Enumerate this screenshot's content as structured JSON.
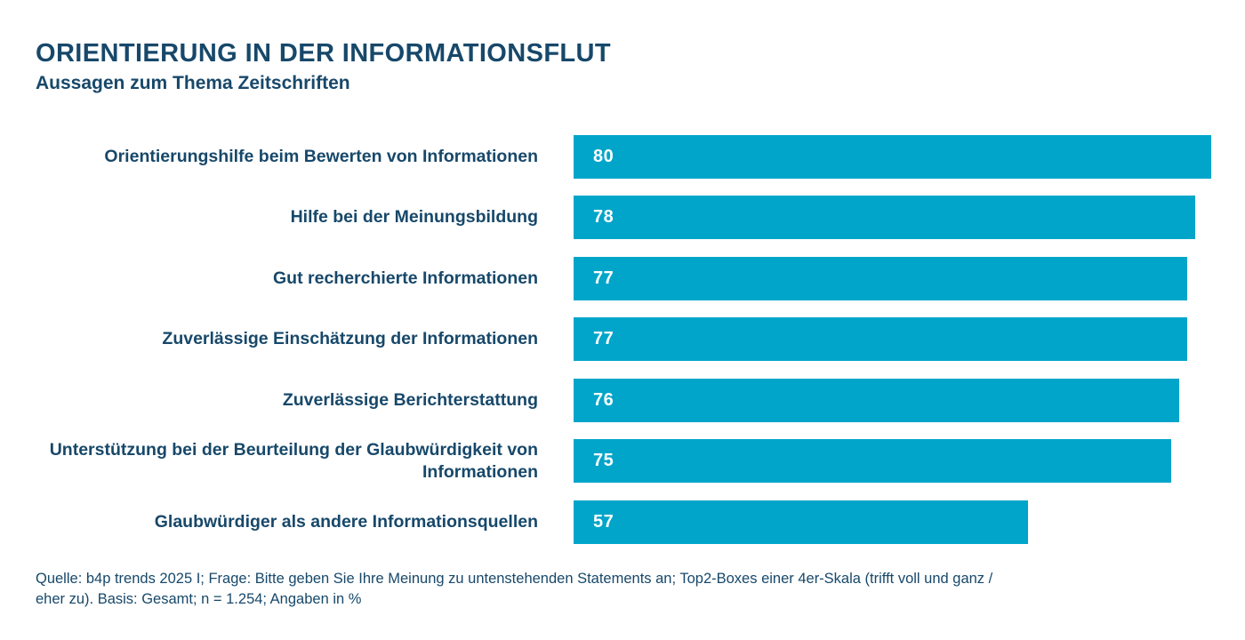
{
  "header": {
    "title": "ORIENTIERUNG IN DER INFORMATIONSFLUT",
    "subtitle": "Aussagen zum Thema Zeitschriften"
  },
  "chart_data": {
    "type": "bar",
    "orientation": "horizontal",
    "title": "ORIENTIERUNG IN DER INFORMATIONSFLUT",
    "subtitle": "Aussagen zum Thema Zeitschriften",
    "categories": [
      "Orientierungshilfe beim Bewerten von Informationen",
      "Hilfe bei der Meinungsbildung",
      "Gut recherchierte Informationen",
      "Zuverlässige Einschätzung der Informationen",
      "Zuverlässige Berichterstattung",
      "Unterstützung bei der Beurteilung der Glaubwürdigkeit von Informationen",
      "Glaubwürdiger als andere Informationsquellen"
    ],
    "values": [
      80,
      78,
      77,
      77,
      76,
      75,
      57
    ],
    "unit": "%",
    "value_labels": "inside-bar-left",
    "xlim": [
      0,
      84
    ],
    "grid": false,
    "legend": false,
    "colors": {
      "bar": "#00a5c9",
      "label_text": "#17486a",
      "value_text": "#ffffff",
      "background": "#ffffff"
    }
  },
  "footer": {
    "line1": "Quelle: b4p trends 2025 I; Frage: Bitte geben Sie Ihre Meinung zu untenstehenden Statements an; Top2-Boxes einer 4er-Skala (trifft voll und ganz /",
    "line2": "eher zu). Basis: Gesamt; n = 1.254; Angaben in %"
  }
}
